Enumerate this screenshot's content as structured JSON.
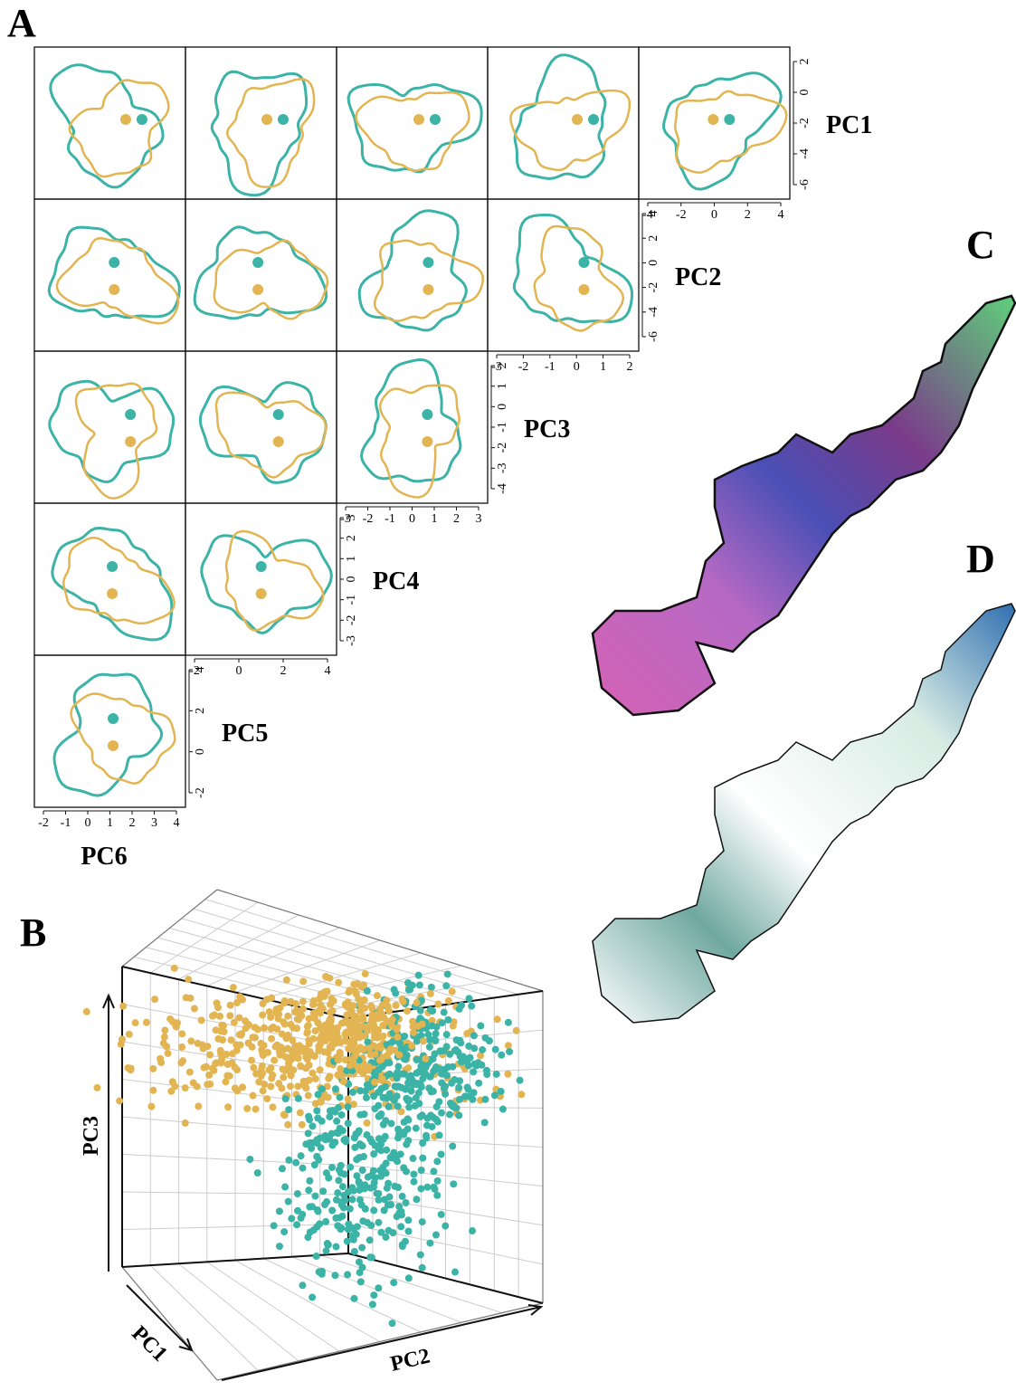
{
  "panels": {
    "A": {
      "label": "A",
      "rows": [
        {
          "label": "PC1",
          "side_ticks": [
            2,
            0,
            -2,
            -4,
            -6
          ],
          "bottom_ticks": [
            -4,
            -2,
            0,
            2,
            4
          ]
        },
        {
          "label": "PC2",
          "side_ticks": [
            4,
            2,
            0,
            -2,
            -4,
            -6
          ],
          "bottom_ticks": [
            -3,
            -2,
            -1,
            0,
            1,
            2
          ]
        },
        {
          "label": "PC3",
          "side_ticks": [
            2,
            1,
            0,
            -1,
            -2,
            -3,
            -4
          ],
          "bottom_ticks": [
            -3,
            -2,
            -1,
            0,
            1,
            2,
            3
          ]
        },
        {
          "label": "PC4",
          "side_ticks": [
            3,
            2,
            1,
            0,
            -1,
            -2,
            -3
          ],
          "bottom_ticks": [
            -2,
            0,
            2,
            4
          ]
        },
        {
          "label": "PC5",
          "side_ticks": [
            4,
            2,
            0,
            -2
          ],
          "bottom_ticks": [
            -2,
            -1,
            0,
            1,
            2,
            3,
            4
          ]
        }
      ],
      "bottom_label": "PC6"
    },
    "B": {
      "label": "B",
      "axes": {
        "vertical": "PC3",
        "depth": "PC1",
        "horizontal": "PC2"
      }
    },
    "C": {
      "label": "C"
    },
    "D": {
      "label": "D"
    }
  }
}
